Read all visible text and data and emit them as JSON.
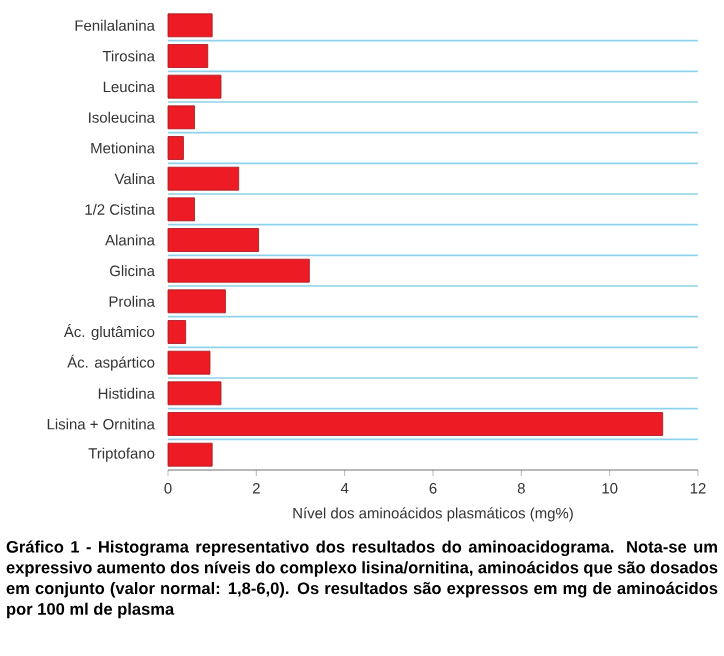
{
  "chart_data": {
    "type": "bar",
    "orientation": "horizontal",
    "categories": [
      "Fenilalanina",
      "Tirosina",
      "Leucina",
      "Isoleucina",
      "Metionina",
      "Valina",
      "1/2 Cistina",
      "Alanina",
      "Glicina",
      "Prolina",
      "Ác. glutâmico",
      "Ác. aspártico",
      "Histidina",
      "Lisina + Ornitina",
      "Triptofano"
    ],
    "values": [
      1.0,
      0.9,
      1.2,
      0.6,
      0.35,
      1.6,
      0.6,
      2.05,
      3.2,
      1.3,
      0.4,
      0.95,
      1.2,
      11.2,
      1.0
    ],
    "color": "#ed1c24",
    "xlim": [
      0,
      12
    ],
    "xticks": [
      0,
      2,
      4,
      6,
      8,
      10,
      12
    ],
    "xlabel": "Nível dos aminoácidos plasmáticos (mg%)",
    "grid": "y",
    "annotations": [
      "Gráfico 1 - Histograma representativo dos resultados do aminoacidograma. Nota-se um expressivo aumento dos níveis do complexo lisina/ornitina, aminoácidos que são dosados em conjunto (valor normal: 1,8-6,0). Os resultados são expressos em mg de aminoácidos por 100 ml de plasma"
    ]
  }
}
